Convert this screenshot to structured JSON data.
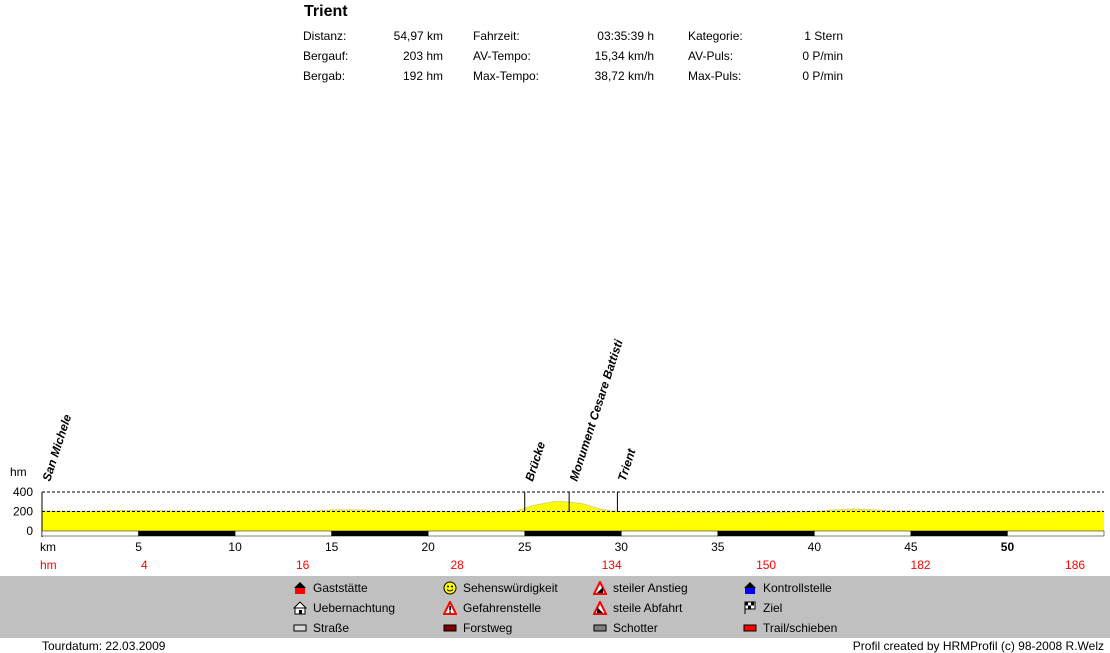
{
  "header": {
    "title": "Trient",
    "stats": [
      [
        {
          "label": "Distanz:",
          "value": "54,97 km"
        },
        {
          "label": "Fahrzeit:",
          "value": "03:35:39 h"
        },
        {
          "label": "Kategorie:",
          "value": "1 Stern"
        }
      ],
      [
        {
          "label": "Bergauf:",
          "value": "203 hm"
        },
        {
          "label": "AV-Tempo:",
          "value": "15,34 km/h"
        },
        {
          "label": "AV-Puls:",
          "value": "0 P/min"
        }
      ],
      [
        {
          "label": "Bergab:",
          "value": "192 hm"
        },
        {
          "label": "Max-Tempo:",
          "value": "38,72 km/h"
        },
        {
          "label": "Max-Puls:",
          "value": "0 P/min"
        }
      ]
    ]
  },
  "chart_data": {
    "type": "area",
    "ylabel": "hm",
    "xlabel": "km",
    "cum_label": "hm",
    "xlim": [
      0,
      55
    ],
    "ylim": [
      0,
      400
    ],
    "y_ticks": [
      "400",
      "200",
      "0"
    ],
    "x_ticks": [
      5,
      10,
      15,
      20,
      25,
      30,
      35,
      40,
      45,
      50
    ],
    "x_tick_labels": [
      "5",
      "10",
      "15",
      "20",
      "25",
      "30",
      "35",
      "40",
      "45",
      "50"
    ],
    "cum_climb_labels": [
      "4",
      "16",
      "28",
      "134",
      "150",
      "182",
      "186"
    ],
    "cum_climb_km": [
      5.3,
      13.5,
      21.5,
      29.5,
      37.5,
      45.5,
      53.5
    ],
    "reference_line": 400,
    "fill_color": "#ffff00",
    "profile": {
      "x": [
        0,
        2,
        4,
        6,
        8,
        10,
        12,
        14,
        15,
        16,
        17,
        18,
        20,
        22,
        23.5,
        24.5,
        25.5,
        26.5,
        27,
        28,
        28.8,
        29.5,
        30,
        32,
        34,
        36,
        38,
        40,
        41,
        42,
        43,
        44,
        46,
        48,
        50,
        52,
        54,
        55
      ],
      "y": [
        205,
        200,
        210,
        208,
        203,
        198,
        200,
        205,
        215,
        218,
        212,
        205,
        200,
        198,
        196,
        200,
        265,
        300,
        302,
        280,
        230,
        205,
        200,
        198,
        192,
        190,
        193,
        200,
        215,
        225,
        218,
        205,
        200,
        198,
        195,
        195,
        197,
        205
      ]
    },
    "surface_segments": [
      {
        "from": 0,
        "to": 5,
        "type": "Straße"
      },
      {
        "from": 5,
        "to": 10,
        "type": "Forstweg"
      },
      {
        "from": 10,
        "to": 15,
        "type": "Straße"
      },
      {
        "from": 15,
        "to": 20,
        "type": "Forstweg"
      },
      {
        "from": 20,
        "to": 25,
        "type": "Straße"
      },
      {
        "from": 25,
        "to": 30,
        "type": "Forstweg"
      },
      {
        "from": 30,
        "to": 35,
        "type": "Straße"
      },
      {
        "from": 35,
        "to": 40,
        "type": "Forstweg"
      },
      {
        "from": 40,
        "to": 45,
        "type": "Straße"
      },
      {
        "from": 45,
        "to": 50,
        "type": "Forstweg"
      },
      {
        "from": 50,
        "to": 55,
        "type": "Straße"
      }
    ],
    "waypoints": [
      {
        "label": "San Michele",
        "km": 0
      },
      {
        "label": "Brücke",
        "km": 25
      },
      {
        "label": "Monument Cesare Battisti",
        "km": 27.3
      },
      {
        "label": "Trient",
        "km": 29.8
      }
    ]
  },
  "legend": [
    {
      "label": "Gaststätte",
      "icon": "gaststaette-icon",
      "color": "#ff0000"
    },
    {
      "label": "Uebernachtung",
      "icon": "uebernachtung-icon",
      "color": "#ffffff"
    },
    {
      "label": "Straße",
      "icon": "strasse-icon",
      "color": "#d8d8d8"
    },
    {
      "label": "Sehenswürdigkeit",
      "icon": "sehenswuerdigkeit-icon",
      "color": "#ffff00"
    },
    {
      "label": "Gefahrenstelle",
      "icon": "gefahrenstelle-icon",
      "color": "#ff0000"
    },
    {
      "label": "Forstweg",
      "icon": "forstweg-icon",
      "color": "#800000"
    },
    {
      "label": "steiler Anstieg",
      "icon": "steiler-anstieg-icon",
      "color": "#ff0000"
    },
    {
      "label": "steile Abfahrt",
      "icon": "steile-abfahrt-icon",
      "color": "#ff0000"
    },
    {
      "label": "Schotter",
      "icon": "schotter-icon",
      "color": "#808080"
    },
    {
      "label": "Kontrollstelle",
      "icon": "kontrollstelle-icon",
      "color": "#0000ff"
    },
    {
      "label": "Ziel",
      "icon": "ziel-icon",
      "color": "#000000"
    },
    {
      "label": "Trail/schieben",
      "icon": "trail-schieben-icon",
      "color": "#ff0000"
    }
  ],
  "footer": {
    "tourdatum": "Tourdatum: 22.03.2009",
    "credit": "Profil created by HRMProfil (c) 98-2008 R.Welz"
  }
}
